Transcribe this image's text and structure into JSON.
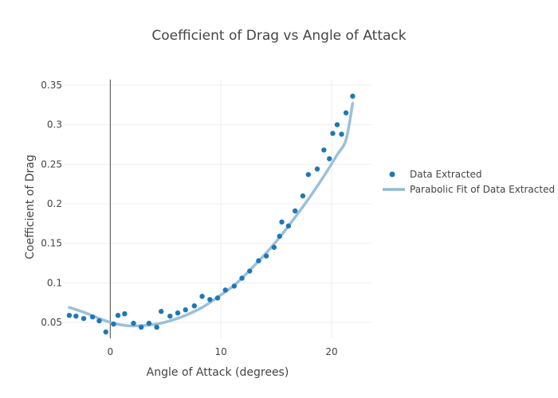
{
  "colors": {
    "points": "#1f77b4",
    "fit": "#8fb9d8",
    "grid": "#eeeeee",
    "zeroline": "#444444",
    "text": "#444444"
  },
  "chart_data": {
    "type": "scatter",
    "title": "Coefficient of Drag vs Angle of Attack",
    "xlabel": "Angle of Attack (degrees)",
    "ylabel": "Coefficient of Drag",
    "xlim": [
      -4.2,
      23.6
    ],
    "ylim": [
      0.03,
      0.357
    ],
    "grid": true,
    "legend_position": "right",
    "x_ticks": [
      0,
      10,
      20
    ],
    "x_tick_labels": [
      "0",
      "10",
      "20"
    ],
    "y_ticks": [
      0.05,
      0.1,
      0.15,
      0.2,
      0.25,
      0.3,
      0.35
    ],
    "y_tick_labels": [
      "0.05",
      "0.1",
      "0.15",
      "0.2",
      "0.25",
      "0.3",
      "0.35"
    ],
    "series": [
      {
        "name": "Data Extracted",
        "mode": "markers",
        "x": [
          -3.7,
          -3.1,
          -2.4,
          -1.6,
          -1.0,
          -0.4,
          0.3,
          0.7,
          1.3,
          2.1,
          2.8,
          3.5,
          4.2,
          4.6,
          5.4,
          6.1,
          6.8,
          7.6,
          8.3,
          9.0,
          9.7,
          10.4,
          11.2,
          11.9,
          12.6,
          13.4,
          14.1,
          14.8,
          15.3,
          15.5,
          16.1,
          16.7,
          17.4,
          17.9,
          18.7,
          19.3,
          19.8,
          20.1,
          20.5,
          20.9,
          21.3,
          21.9
        ],
        "y": [
          0.059,
          0.058,
          0.055,
          0.057,
          0.052,
          0.038,
          0.048,
          0.059,
          0.061,
          0.049,
          0.044,
          0.049,
          0.044,
          0.064,
          0.058,
          0.062,
          0.066,
          0.071,
          0.083,
          0.079,
          0.081,
          0.091,
          0.096,
          0.106,
          0.115,
          0.128,
          0.134,
          0.145,
          0.159,
          0.177,
          0.172,
          0.191,
          0.21,
          0.237,
          0.244,
          0.268,
          0.257,
          0.289,
          0.3,
          0.288,
          0.315,
          0.336
        ]
      },
      {
        "name": "Parabolic Fit of Data Extracted",
        "mode": "lines",
        "x": [
          -3.7,
          -2.4,
          -1.0,
          0.3,
          1.5,
          2.8,
          4.2,
          5.4,
          6.8,
          8.3,
          9.7,
          11.2,
          12.6,
          14.1,
          15.5,
          16.7,
          17.9,
          19.3,
          20.5,
          21.3,
          21.9
        ],
        "y": [
          0.069,
          0.063,
          0.055,
          0.049,
          0.046,
          0.046,
          0.048,
          0.052,
          0.059,
          0.069,
          0.082,
          0.097,
          0.116,
          0.138,
          0.161,
          0.183,
          0.206,
          0.235,
          0.262,
          0.281,
          0.327
        ]
      }
    ]
  }
}
